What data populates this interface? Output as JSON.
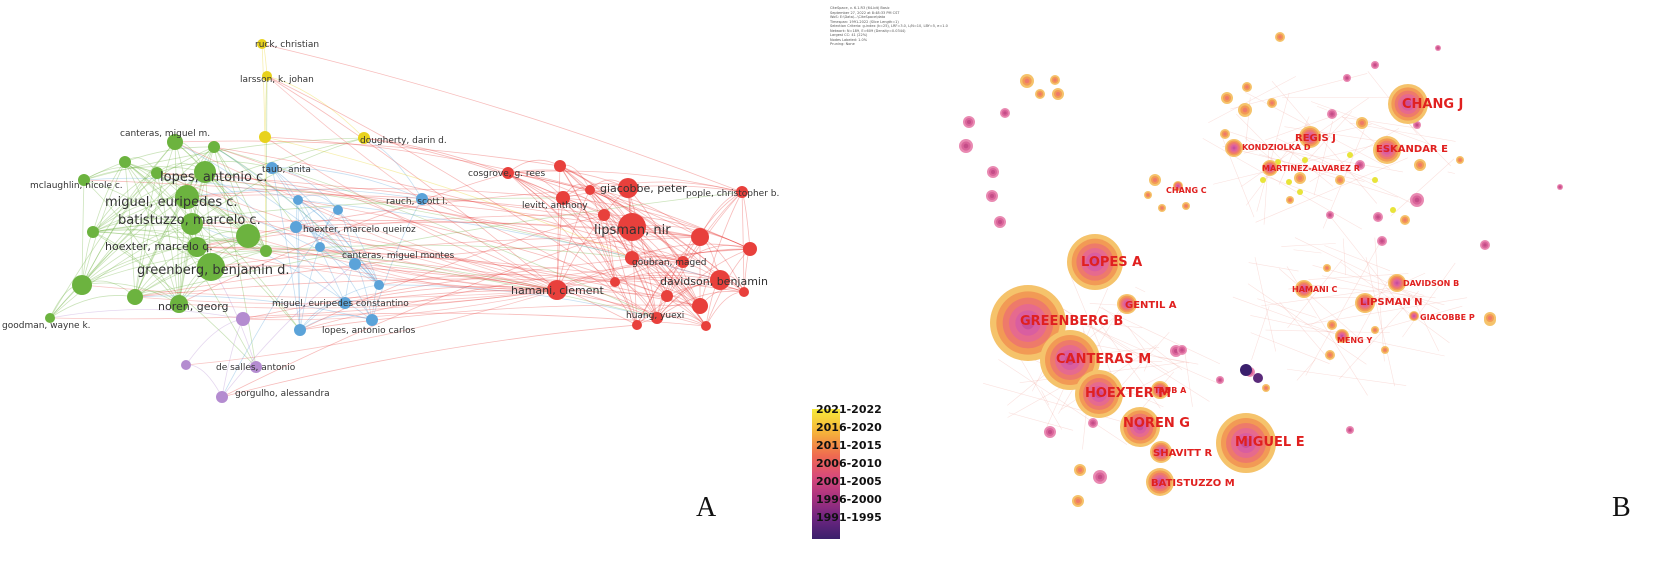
{
  "panel_a": {
    "letter": "A",
    "clusters": {
      "green": "#6cb33f",
      "blue": "#5ba3d9",
      "red": "#e8403c",
      "yellow": "#e8d21d",
      "purple": "#b48cd0"
    },
    "nodes": [
      {
        "id": "ruck",
        "label": "ruck, christian",
        "cluster": "yellow"
      },
      {
        "id": "larsson",
        "label": "larsson, k. johan",
        "cluster": "yellow"
      },
      {
        "id": "dougherty",
        "label": "dougherty, darin d.",
        "cluster": "yellow"
      },
      {
        "id": "canteras_m",
        "label": "canteras, miguel m.",
        "cluster": "green"
      },
      {
        "id": "lopes_ac",
        "label": "lopes, antonio c.",
        "cluster": "green"
      },
      {
        "id": "mclaughlin",
        "label": "mclaughlin, nicole c.",
        "cluster": "green"
      },
      {
        "id": "miguel_e",
        "label": "miguel, euripedes c.",
        "cluster": "green"
      },
      {
        "id": "batistuzzo",
        "label": "batistuzzo, marcelo c.",
        "cluster": "green"
      },
      {
        "id": "hoexter_mq",
        "label": "hoexter, marcelo q.",
        "cluster": "green"
      },
      {
        "id": "greenberg",
        "label": "greenberg, benjamin d.",
        "cluster": "green"
      },
      {
        "id": "noren",
        "label": "noren, georg",
        "cluster": "green"
      },
      {
        "id": "goodman",
        "label": "goodman, wayne k.",
        "cluster": "green"
      },
      {
        "id": "taub",
        "label": "taub, anita",
        "cluster": "blue"
      },
      {
        "id": "rauch",
        "label": "rauch, scott l.",
        "cluster": "blue"
      },
      {
        "id": "hoexter_mqz",
        "label": "hoexter, marcelo queiroz",
        "cluster": "blue"
      },
      {
        "id": "canteras_mm",
        "label": "canteras, miguel montes",
        "cluster": "blue"
      },
      {
        "id": "miguel_ec",
        "label": "miguel, euripedes constantino",
        "cluster": "blue"
      },
      {
        "id": "lopes_acs",
        "label": "lopes, antonio carlos",
        "cluster": "blue"
      },
      {
        "id": "desalles",
        "label": "de salles, antonio",
        "cluster": "purple"
      },
      {
        "id": "gorgulho",
        "label": "gorgulho, alessandra",
        "cluster": "purple"
      },
      {
        "id": "cosgrove",
        "label": "cosgrove, g. rees",
        "cluster": "red"
      },
      {
        "id": "giacobbe",
        "label": "giacobbe, peter",
        "cluster": "red"
      },
      {
        "id": "pople",
        "label": "pople, christopher b.",
        "cluster": "red"
      },
      {
        "id": "levitt",
        "label": "levitt, anthony",
        "cluster": "red"
      },
      {
        "id": "lipsman",
        "label": "lipsman, nir",
        "cluster": "red"
      },
      {
        "id": "goubran",
        "label": "goubran, maged",
        "cluster": "red"
      },
      {
        "id": "davidson",
        "label": "davidson, benjamin",
        "cluster": "red"
      },
      {
        "id": "hamani",
        "label": "hamani, clement",
        "cluster": "red"
      },
      {
        "id": "huang",
        "label": "huang, yuexi",
        "cluster": "red"
      }
    ]
  },
  "panel_b": {
    "letter": "B",
    "header_text": "CiteSpace, v. 6.1.R3 (64-bit) Basic\nSeptember 27, 2022 at 8:48:33 PM CST\nWoS: E:\\Data\\...\\CiteSpace\\data\nTimespan: 1991-2022 (Slice Length=1)\nSelection Criteria: g-index (k=25), LRF=3.0, L/N=10, LBY=5, e=1.0\nNetwork: N=189, E=609 (Density=0.0344)\nLargest CC: 41 (22%)\nNodes Labeled: 1.0%\nPruning: None",
    "labels": [
      {
        "id": "chang_j",
        "text": "CHANG J"
      },
      {
        "id": "regis_j",
        "text": "REGIS J"
      },
      {
        "id": "eskandar",
        "text": "ESKANDAR E"
      },
      {
        "id": "kondziolka",
        "text": "KONDZIOLKA D"
      },
      {
        "id": "martinez",
        "text": "MARTINEZ-ALVAREZ R"
      },
      {
        "id": "chang_c",
        "text": "CHANG C"
      },
      {
        "id": "lopes_a",
        "text": "LOPES A"
      },
      {
        "id": "gentil",
        "text": "GENTIL A"
      },
      {
        "id": "greenberg_b",
        "text": "GREENBERG B"
      },
      {
        "id": "canteras_m",
        "text": "CANTERAS M"
      },
      {
        "id": "hoexter_m",
        "text": "HOEXTER M"
      },
      {
        "id": "taub_a",
        "text": "TAUB A"
      },
      {
        "id": "noren_g",
        "text": "NOREN G"
      },
      {
        "id": "miguel_e",
        "text": "MIGUEL E"
      },
      {
        "id": "shavitt",
        "text": "SHAVITT R"
      },
      {
        "id": "batistuzzo_m",
        "text": "BATISTUZZO M"
      },
      {
        "id": "hamani_c",
        "text": "HAMANI C"
      },
      {
        "id": "davidson_b",
        "text": "DAVIDSON B"
      },
      {
        "id": "lipsman_n",
        "text": "LIPSMAN N"
      },
      {
        "id": "giacobbe_p",
        "text": "GIACOBBE P"
      },
      {
        "id": "meng_y",
        "text": "MENG Y"
      }
    ]
  },
  "legend": {
    "ranges": [
      "2021-2022",
      "2016-2020",
      "2011-2015",
      "2006-2010",
      "2001-2005",
      "1996-2000",
      "1991-1995"
    ]
  }
}
